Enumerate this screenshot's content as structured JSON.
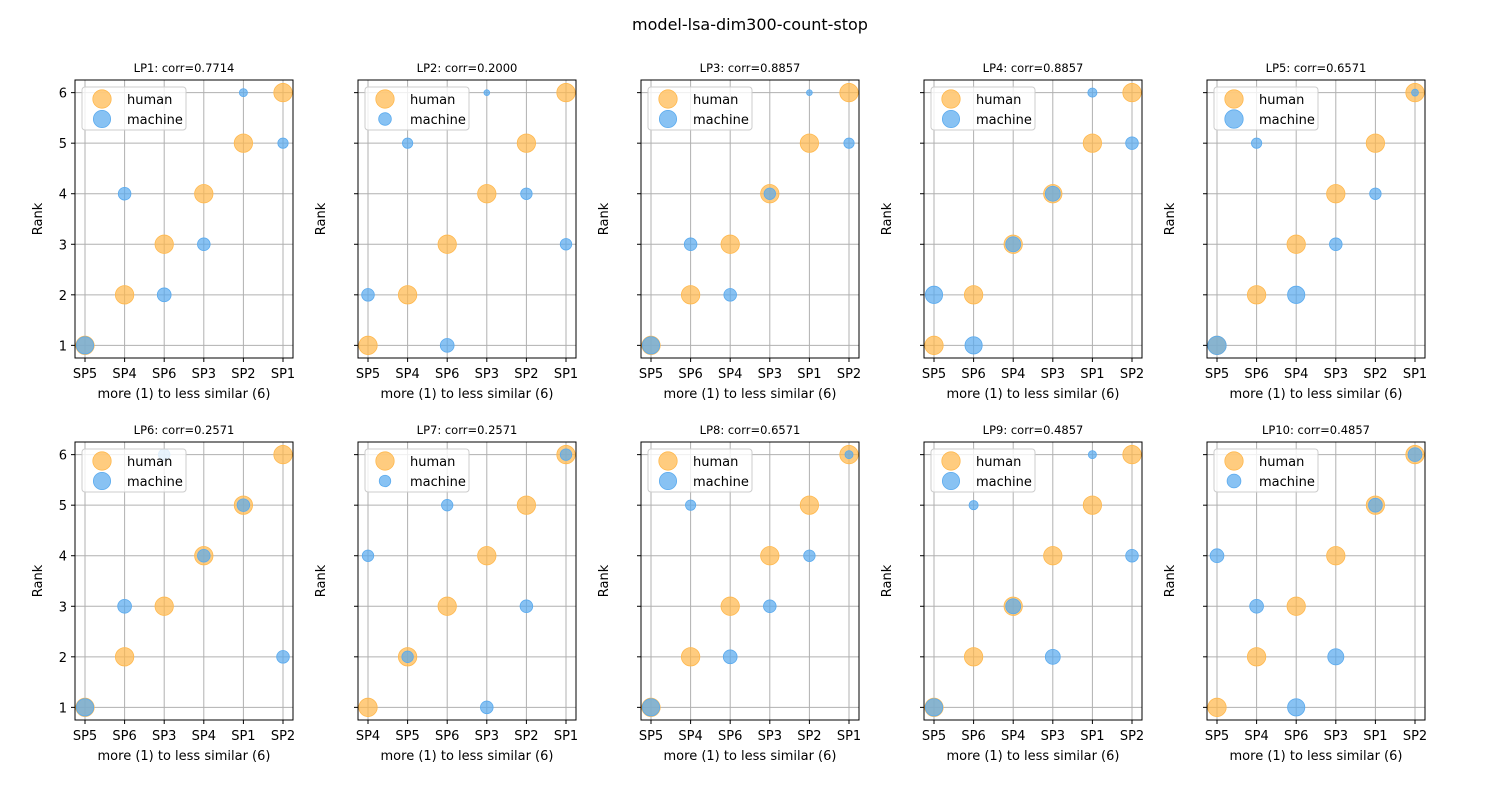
{
  "figure": {
    "title": "model-lsa-dim300-count-stop"
  },
  "colors": {
    "human": "#ffb84d",
    "machine": "#5aaaee",
    "grid": "#b0b0b0",
    "axes": "#000000"
  },
  "chart_data": [
    {
      "type": "scatter",
      "title": "LP1: corr=0.7714",
      "xlabel": "more (1) to less similar (6)",
      "ylabel": "Rank",
      "categories": [
        "SP5",
        "SP4",
        "SP6",
        "SP3",
        "SP2",
        "SP1"
      ],
      "ylim": [
        0.75,
        6.25
      ],
      "yticks": [
        1,
        2,
        3,
        4,
        5,
        6
      ],
      "grid": true,
      "legend": "upper-left",
      "series": [
        {
          "name": "human",
          "values": [
            1,
            2,
            3,
            4,
            5,
            6
          ],
          "sizes": [
            16,
            16,
            16,
            16,
            16,
            16
          ]
        },
        {
          "name": "machine",
          "values": [
            1,
            4,
            2,
            3,
            6,
            5
          ],
          "sizes": [
            15,
            11,
            12,
            11,
            7,
            9
          ]
        }
      ]
    },
    {
      "type": "scatter",
      "title": "LP2: corr=0.2000",
      "xlabel": "more (1) to less similar (6)",
      "ylabel": "Rank",
      "categories": [
        "SP5",
        "SP4",
        "SP6",
        "SP3",
        "SP2",
        "SP1"
      ],
      "ylim": [
        0.75,
        6.25
      ],
      "yticks": [
        1,
        2,
        3,
        4,
        5,
        6
      ],
      "grid": true,
      "legend": "upper-left",
      "series": [
        {
          "name": "human",
          "values": [
            1,
            2,
            3,
            4,
            5,
            6
          ],
          "sizes": [
            16,
            16,
            16,
            16,
            16,
            16
          ]
        },
        {
          "name": "machine",
          "values": [
            2,
            5,
            1,
            6,
            4,
            3
          ],
          "sizes": [
            11,
            9,
            12,
            5,
            10,
            10
          ]
        }
      ]
    },
    {
      "type": "scatter",
      "title": "LP3: corr=0.8857",
      "xlabel": "more (1) to less similar (6)",
      "ylabel": "Rank",
      "categories": [
        "SP5",
        "SP6",
        "SP4",
        "SP3",
        "SP1",
        "SP2"
      ],
      "ylim": [
        0.75,
        6.25
      ],
      "yticks": [
        1,
        2,
        3,
        4,
        5,
        6
      ],
      "grid": true,
      "legend": "upper-left",
      "series": [
        {
          "name": "human",
          "values": [
            1,
            2,
            3,
            4,
            5,
            6
          ],
          "sizes": [
            16,
            16,
            16,
            16,
            16,
            16
          ]
        },
        {
          "name": "machine",
          "values": [
            1,
            3,
            2,
            4,
            6,
            5
          ],
          "sizes": [
            15,
            11,
            11,
            10,
            5,
            9
          ]
        }
      ]
    },
    {
      "type": "scatter",
      "title": "LP4: corr=0.8857",
      "xlabel": "more (1) to less similar (6)",
      "ylabel": "Rank",
      "categories": [
        "SP5",
        "SP6",
        "SP4",
        "SP3",
        "SP1",
        "SP2"
      ],
      "ylim": [
        0.75,
        6.25
      ],
      "yticks": [
        1,
        2,
        3,
        4,
        5,
        6
      ],
      "grid": true,
      "legend": "upper-left",
      "series": [
        {
          "name": "human",
          "values": [
            1,
            2,
            3,
            4,
            5,
            6
          ],
          "sizes": [
            16,
            16,
            16,
            16,
            16,
            16
          ]
        },
        {
          "name": "machine",
          "values": [
            2,
            1,
            3,
            4,
            6,
            5
          ],
          "sizes": [
            15,
            15,
            13,
            13,
            8,
            11
          ]
        }
      ]
    },
    {
      "type": "scatter",
      "title": "LP5: corr=0.6571",
      "xlabel": "more (1) to less similar (6)",
      "ylabel": "Rank",
      "categories": [
        "SP5",
        "SP6",
        "SP4",
        "SP3",
        "SP2",
        "SP1"
      ],
      "ylim": [
        0.75,
        6.25
      ],
      "yticks": [
        1,
        2,
        3,
        4,
        5,
        6
      ],
      "grid": true,
      "legend": "upper-left",
      "series": [
        {
          "name": "human",
          "values": [
            1,
            2,
            3,
            4,
            5,
            6
          ],
          "sizes": [
            16,
            16,
            16,
            16,
            16,
            16
          ]
        },
        {
          "name": "machine",
          "values": [
            1,
            5,
            2,
            3,
            4,
            6
          ],
          "sizes": [
            16,
            9,
            15,
            11,
            10,
            6
          ]
        }
      ]
    },
    {
      "type": "scatter",
      "title": "LP6: corr=0.2571",
      "xlabel": "more (1) to less similar (6)",
      "ylabel": "Rank",
      "categories": [
        "SP5",
        "SP6",
        "SP3",
        "SP4",
        "SP1",
        "SP2"
      ],
      "ylim": [
        0.75,
        6.25
      ],
      "yticks": [
        1,
        2,
        3,
        4,
        5,
        6
      ],
      "grid": true,
      "legend": "upper-left",
      "series": [
        {
          "name": "human",
          "values": [
            1,
            2,
            3,
            4,
            5,
            6
          ],
          "sizes": [
            16,
            16,
            16,
            16,
            16,
            16
          ]
        },
        {
          "name": "machine",
          "values": [
            1,
            3,
            6,
            4,
            5,
            2
          ],
          "sizes": [
            15,
            12,
            10,
            11,
            11,
            11
          ]
        }
      ]
    },
    {
      "type": "scatter",
      "title": "LP7: corr=0.2571",
      "xlabel": "more (1) to less similar (6)",
      "ylabel": "Rank",
      "categories": [
        "SP4",
        "SP5",
        "SP6",
        "SP3",
        "SP2",
        "SP1"
      ],
      "ylim": [
        0.75,
        6.25
      ],
      "yticks": [
        1,
        2,
        3,
        4,
        5,
        6
      ],
      "grid": true,
      "legend": "upper-left",
      "series": [
        {
          "name": "human",
          "values": [
            1,
            2,
            3,
            4,
            5,
            6
          ],
          "sizes": [
            16,
            16,
            16,
            16,
            16,
            16
          ]
        },
        {
          "name": "machine",
          "values": [
            4,
            2,
            5,
            1,
            3,
            6
          ],
          "sizes": [
            10,
            10,
            10,
            11,
            11,
            10
          ]
        }
      ]
    },
    {
      "type": "scatter",
      "title": "LP8: corr=0.6571",
      "xlabel": "more (1) to less similar (6)",
      "ylabel": "Rank",
      "categories": [
        "SP5",
        "SP4",
        "SP6",
        "SP3",
        "SP2",
        "SP1"
      ],
      "ylim": [
        0.75,
        6.25
      ],
      "yticks": [
        1,
        2,
        3,
        4,
        5,
        6
      ],
      "grid": true,
      "legend": "upper-left",
      "series": [
        {
          "name": "human",
          "values": [
            1,
            2,
            3,
            4,
            5,
            6
          ],
          "sizes": [
            16,
            16,
            16,
            16,
            16,
            16
          ]
        },
        {
          "name": "machine",
          "values": [
            1,
            5,
            2,
            3,
            4,
            6
          ],
          "sizes": [
            15,
            9,
            12,
            11,
            10,
            7
          ]
        }
      ]
    },
    {
      "type": "scatter",
      "title": "LP9: corr=0.4857",
      "xlabel": "more (1) to less similar (6)",
      "ylabel": "Rank",
      "categories": [
        "SP5",
        "SP6",
        "SP4",
        "SP3",
        "SP1",
        "SP2"
      ],
      "ylim": [
        0.75,
        6.25
      ],
      "yticks": [
        1,
        2,
        3,
        4,
        5,
        6
      ],
      "grid": true,
      "legend": "upper-left",
      "series": [
        {
          "name": "human",
          "values": [
            1,
            2,
            3,
            4,
            5,
            6
          ],
          "sizes": [
            16,
            16,
            16,
            16,
            16,
            16
          ]
        },
        {
          "name": "machine",
          "values": [
            1,
            5,
            3,
            2,
            6,
            4
          ],
          "sizes": [
            15,
            8,
            13,
            13,
            7,
            11
          ]
        }
      ]
    },
    {
      "type": "scatter",
      "title": "LP10: corr=0.4857",
      "xlabel": "more (1) to less similar (6)",
      "ylabel": "Rank",
      "categories": [
        "SP5",
        "SP4",
        "SP6",
        "SP3",
        "SP1",
        "SP2"
      ],
      "ylim": [
        0.75,
        6.25
      ],
      "yticks": [
        1,
        2,
        3,
        4,
        5,
        6
      ],
      "grid": true,
      "legend": "upper-left",
      "series": [
        {
          "name": "human",
          "values": [
            1,
            2,
            3,
            4,
            5,
            6
          ],
          "sizes": [
            16,
            16,
            16,
            16,
            16,
            16
          ]
        },
        {
          "name": "machine",
          "values": [
            4,
            3,
            1,
            2,
            5,
            6
          ],
          "sizes": [
            12,
            12,
            15,
            14,
            12,
            12
          ]
        }
      ]
    }
  ]
}
